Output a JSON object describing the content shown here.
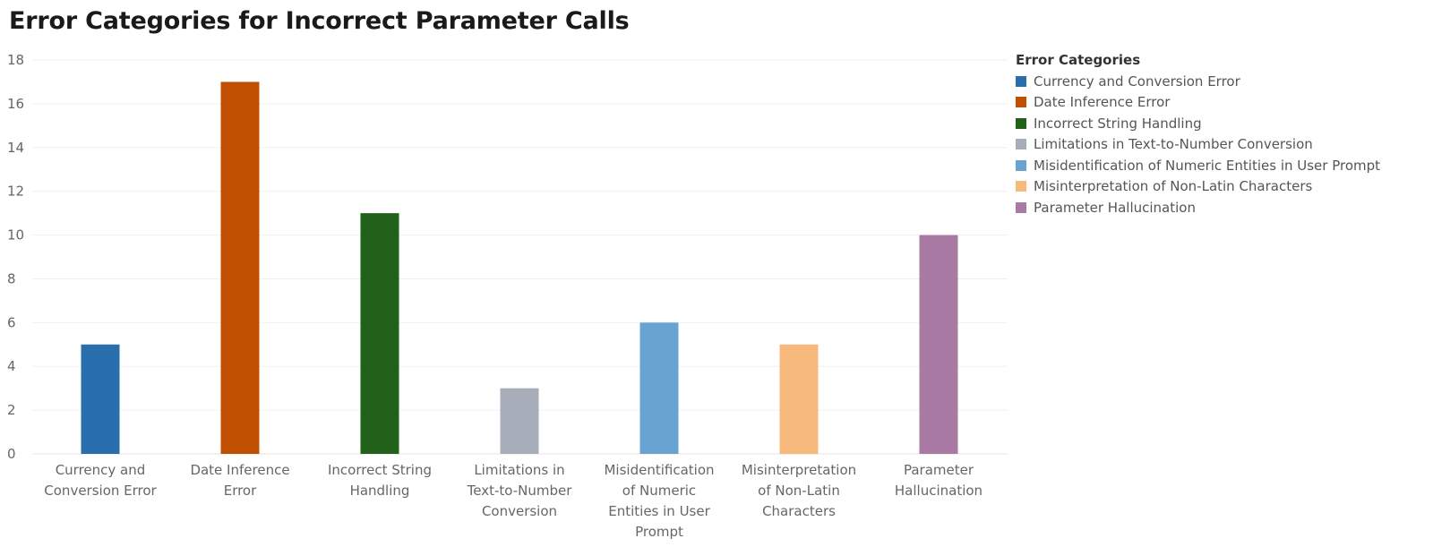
{
  "chart_data": {
    "type": "bar",
    "title": "Error Categories for Incorrect Parameter Calls",
    "xlabel": "",
    "ylabel": "",
    "ylim": [
      0,
      18
    ],
    "yticks": [
      0,
      2,
      4,
      6,
      8,
      10,
      12,
      14,
      16,
      18
    ],
    "grid": true,
    "legend_position": "right",
    "legend_title": "Error Categories",
    "categories": [
      "Currency and Conversion Error",
      "Date Inference Error",
      "Incorrect String Handling",
      "Limitations in Text-to-Number Conversion",
      "Misidentification of Numeric Entities in User Prompt",
      "Misinterpretation of Non-Latin Characters",
      "Parameter Hallucination"
    ],
    "category_label_lines": [
      [
        "Currency and",
        "Conversion Error"
      ],
      [
        "Date Inference",
        "Error"
      ],
      [
        "Incorrect String",
        "Handling"
      ],
      [
        "Limitations in",
        "Text-to-Number",
        "Conversion"
      ],
      [
        "Misidentification",
        "of Numeric",
        "Entities in User",
        "Prompt"
      ],
      [
        "Misinterpretation",
        "of Non-Latin",
        "Characters"
      ],
      [
        "Parameter",
        "Hallucination"
      ]
    ],
    "values": [
      5,
      17,
      11,
      3,
      6,
      5,
      10
    ],
    "colors": [
      "#2a6fad",
      "#c04f02",
      "#226119",
      "#a7adb9",
      "#69a3d1",
      "#f8b97c",
      "#a97ba4"
    ]
  }
}
